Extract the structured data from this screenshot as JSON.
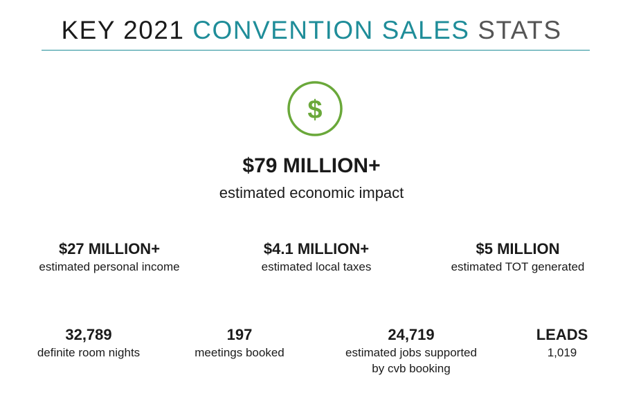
{
  "header": {
    "title_part1": "KEY 2021",
    "title_part2": "CONVENTION SALES",
    "title_part3": "STATS"
  },
  "colors": {
    "accent_teal": "#1f8d99",
    "accent_green": "#6aa83a",
    "text": "#1a1a1a"
  },
  "hero": {
    "icon": "dollar-icon",
    "value": "$79 MILLION+",
    "label": "estimated economic impact"
  },
  "row1": [
    {
      "value": "$27 MILLION+",
      "label": "estimated personal income"
    },
    {
      "value": "$4.1 MILLION+",
      "label": "estimated local taxes"
    },
    {
      "value": "$5 MILLION",
      "label": "estimated TOT generated"
    }
  ],
  "row2": [
    {
      "value": "32,789",
      "label": "definite room nights"
    },
    {
      "value": "197",
      "label": "meetings booked"
    },
    {
      "value": "24,719",
      "label_line1": "estimated jobs supported",
      "label_line2": "by cvb booking"
    },
    {
      "value": "LEADS",
      "label": "1,019"
    }
  ]
}
